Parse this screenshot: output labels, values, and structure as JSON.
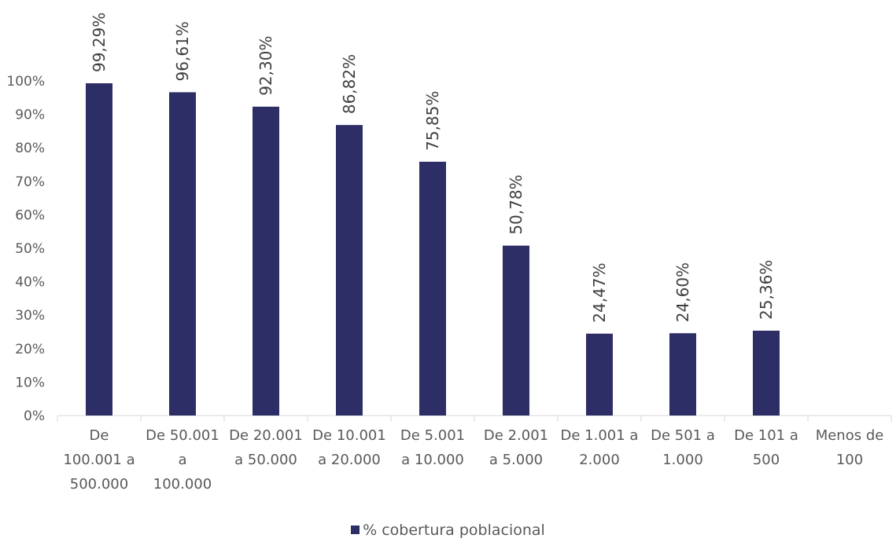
{
  "chart_data": {
    "type": "bar",
    "categories": [
      [
        "De",
        "100.001 a",
        "500.000"
      ],
      [
        "De 50.001",
        "a",
        "100.000"
      ],
      [
        "De 20.001",
        "a 50.000"
      ],
      [
        "De 10.001",
        "a 20.000"
      ],
      [
        "De 5.001",
        "a 10.000"
      ],
      [
        "De 2.001",
        "a 5.000"
      ],
      [
        "De 1.001 a",
        "2.000"
      ],
      [
        "De 501 a",
        "1.000"
      ],
      [
        "De 101 a",
        "500"
      ],
      [
        "Menos de",
        "100"
      ]
    ],
    "series": [
      {
        "name": "% cobertura poblacional",
        "values": [
          99.29,
          96.61,
          92.3,
          86.82,
          75.85,
          50.78,
          24.47,
          24.6,
          25.36,
          null
        ],
        "labels": [
          "99,29%",
          "96,61%",
          "92,30%",
          "86,82%",
          "75,85%",
          "50,78%",
          "24,47%",
          "24,60%",
          "25,36%",
          ""
        ],
        "color": "#2e2e66"
      }
    ],
    "y_ticks": [
      "0%",
      "10%",
      "20%",
      "30%",
      "40%",
      "50%",
      "60%",
      "70%",
      "80%",
      "90%",
      "100%"
    ],
    "ylim": [
      0,
      100
    ],
    "grid": false,
    "legend_position": "bottom",
    "axis_color": "#d9d9d9"
  }
}
